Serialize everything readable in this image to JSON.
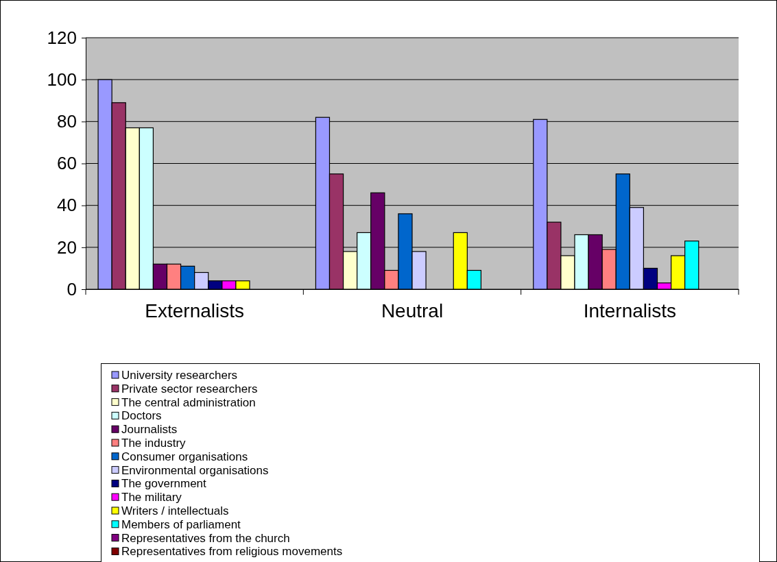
{
  "chart_data": {
    "type": "bar",
    "categories": [
      "Externalists",
      "Neutral",
      "Internalists"
    ],
    "series": [
      {
        "name": "University researchers",
        "color": "#9999ff",
        "values": [
          100,
          82,
          81
        ]
      },
      {
        "name": "Private sector researchers",
        "color": "#993366",
        "values": [
          89,
          55,
          32
        ]
      },
      {
        "name": "The central administration",
        "color": "#ffffcc",
        "values": [
          77,
          18,
          16
        ]
      },
      {
        "name": "Doctors",
        "color": "#ccffff",
        "values": [
          77,
          27,
          26
        ]
      },
      {
        "name": "Journalists",
        "color": "#660066",
        "values": [
          12,
          46,
          26
        ]
      },
      {
        "name": "The industry",
        "color": "#ff8080",
        "values": [
          12,
          9,
          19
        ]
      },
      {
        "name": "Consumer organisations",
        "color": "#0066cc",
        "values": [
          11,
          36,
          55
        ]
      },
      {
        "name": "Environmental organisations",
        "color": "#ccccff",
        "values": [
          8,
          18,
          39
        ]
      },
      {
        "name": "The government",
        "color": "#000080",
        "values": [
          4,
          null,
          10
        ]
      },
      {
        "name": "The military",
        "color": "#ff00ff",
        "values": [
          4,
          null,
          3
        ]
      },
      {
        "name": "Writers / intellectuals",
        "color": "#ffff00",
        "values": [
          4,
          27,
          16
        ]
      },
      {
        "name": "Members of parliament",
        "color": "#00ffff",
        "values": [
          null,
          9,
          23
        ]
      },
      {
        "name": "Representatives from the church",
        "color": "#800080",
        "values": [
          null,
          null,
          null
        ]
      },
      {
        "name": "Representatives from religious movements",
        "color": "#800000",
        "values": [
          null,
          null,
          null
        ]
      }
    ],
    "ylim": [
      0,
      120
    ],
    "yticks": [
      0,
      20,
      40,
      60,
      80,
      100,
      120
    ],
    "grid": "y",
    "legend": "bottom"
  }
}
